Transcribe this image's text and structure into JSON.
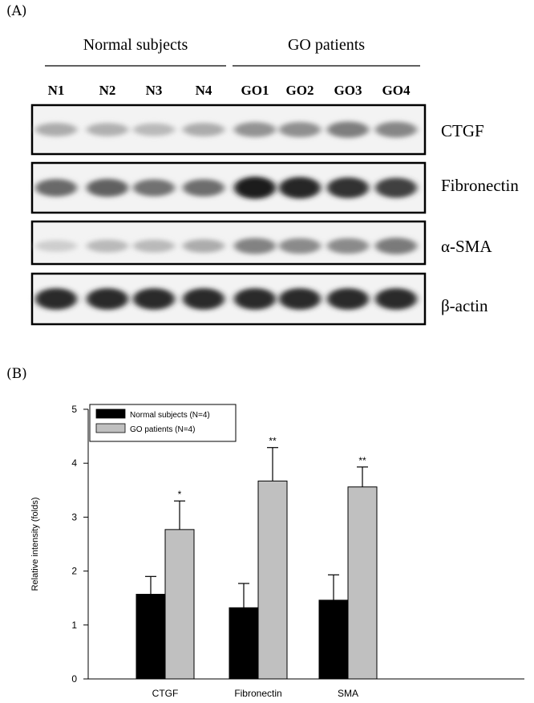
{
  "panel_a": {
    "label": "(A)",
    "groups": [
      {
        "name": "Normal subjects",
        "lanes": [
          "N1",
          "N2",
          "N3",
          "N4"
        ]
      },
      {
        "name": "GO patients",
        "lanes": [
          "GO1",
          "GO2",
          "GO3",
          "GO4"
        ]
      }
    ],
    "blots": [
      {
        "protein": "CTGF",
        "band_intensity": [
          0.3,
          0.28,
          0.24,
          0.3,
          0.42,
          0.44,
          0.52,
          0.48
        ]
      },
      {
        "protein": "Fibronectin",
        "band_intensity": [
          0.62,
          0.66,
          0.58,
          0.6,
          0.98,
          0.94,
          0.88,
          0.82
        ]
      },
      {
        "protein": "α-SMA",
        "band_intensity": [
          0.14,
          0.24,
          0.24,
          0.3,
          0.5,
          0.46,
          0.46,
          0.54
        ]
      },
      {
        "protein": "β-actin",
        "band_intensity": [
          0.92,
          0.92,
          0.92,
          0.92,
          0.92,
          0.92,
          0.92,
          0.92
        ]
      }
    ]
  },
  "panel_b": {
    "label": "(B)"
  },
  "chart_data": {
    "type": "bar",
    "title": "",
    "xlabel": "",
    "ylabel": "Relative intensity (folds)",
    "categories": [
      "CTGF",
      "Fibronectin",
      "SMA"
    ],
    "ylim": [
      0,
      5
    ],
    "yticks": [
      "0",
      "1",
      "2",
      "3",
      "4",
      "5"
    ],
    "grid": false,
    "legend_position": "top-left",
    "series": [
      {
        "name": "Normal subjects (N=4)",
        "color": "#000000",
        "values": [
          1.57,
          1.32,
          1.46
        ],
        "error": [
          0.33,
          0.45,
          0.47
        ],
        "marks": [
          "",
          "",
          ""
        ]
      },
      {
        "name": "GO patients (N=4)",
        "color": "#c0c0c0",
        "values": [
          2.77,
          3.67,
          3.56
        ],
        "error": [
          0.53,
          0.62,
          0.37
        ],
        "marks": [
          "*",
          "**",
          "**"
        ]
      }
    ]
  }
}
